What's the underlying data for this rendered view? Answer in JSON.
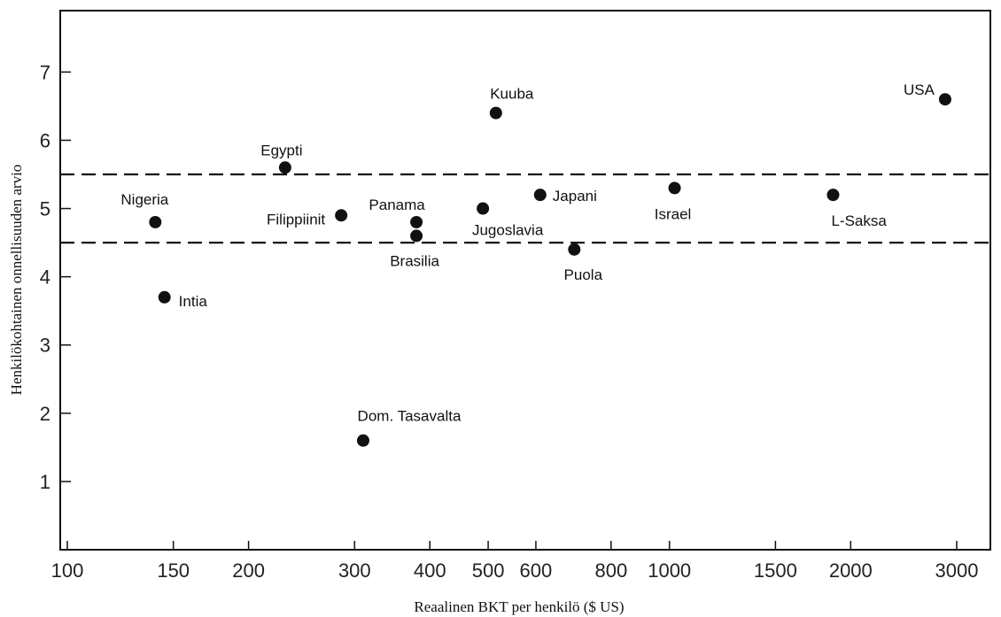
{
  "chart_data": {
    "type": "scatter",
    "title": "",
    "xlabel": "Reaalinen BKT per henkilö ($ US)",
    "ylabel": "Henkilökohtainen onnellisuuden arvio",
    "x_scale": "log",
    "xlim": [
      100,
      3000
    ],
    "ylim": [
      0,
      7.9
    ],
    "x_ticks": [
      {
        "value": 100,
        "label": "100"
      },
      {
        "value": 150,
        "label": "150"
      },
      {
        "value": 200,
        "label": "200"
      },
      {
        "value": 300,
        "label": "300"
      },
      {
        "value": 400,
        "label": "400"
      },
      {
        "value": 500,
        "label": "500"
      },
      {
        "value": 600,
        "label": "600"
      },
      {
        "value": 800,
        "label": "800"
      },
      {
        "value": 1000,
        "label": "1000"
      },
      {
        "value": 1500,
        "label": "1500"
      },
      {
        "value": 2000,
        "label": "2000"
      },
      {
        "value": 3000,
        "label": "3000"
      }
    ],
    "y_ticks": [
      {
        "value": 1,
        "label": "1"
      },
      {
        "value": 2,
        "label": "2"
      },
      {
        "value": 3,
        "label": "3"
      },
      {
        "value": 4,
        "label": "4"
      },
      {
        "value": 5,
        "label": "5"
      },
      {
        "value": 6,
        "label": "6"
      },
      {
        "value": 7,
        "label": "7"
      }
    ],
    "reference_lines": [
      5.5,
      4.5
    ],
    "grid": false,
    "points": [
      {
        "label": "Nigeria",
        "x": 140,
        "y": 4.8
      },
      {
        "label": "Intia",
        "x": 145,
        "y": 3.7
      },
      {
        "label": "Egypti",
        "x": 230,
        "y": 5.6
      },
      {
        "label": "Filippiinit",
        "x": 285,
        "y": 4.9
      },
      {
        "label": "Dom. Tasavalta",
        "x": 310,
        "y": 1.6
      },
      {
        "label": "Panama",
        "x": 380,
        "y": 4.8
      },
      {
        "label": "Brasilia",
        "x": 380,
        "y": 4.6
      },
      {
        "label": "Jugoslavia",
        "x": 490,
        "y": 5.0
      },
      {
        "label": "Kuuba",
        "x": 515,
        "y": 6.4
      },
      {
        "label": "Japani",
        "x": 610,
        "y": 5.2
      },
      {
        "label": "Puola",
        "x": 695,
        "y": 4.4
      },
      {
        "label": "Israel",
        "x": 1020,
        "y": 5.3
      },
      {
        "label": "L-Saksa",
        "x": 1870,
        "y": 5.2
      },
      {
        "label": "USA",
        "x": 2870,
        "y": 6.6
      }
    ]
  }
}
